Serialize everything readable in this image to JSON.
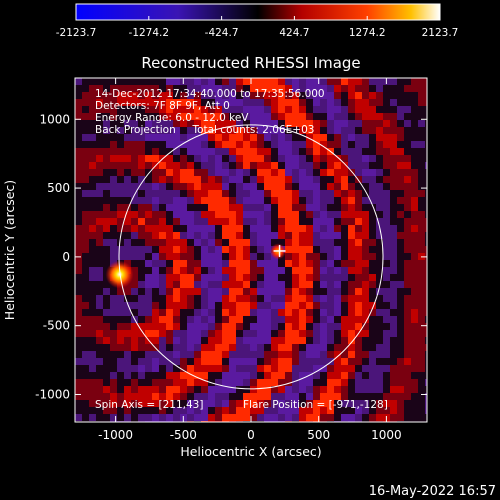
{
  "chart_data": {
    "type": "heatmap",
    "title": "Reconstructed RHESSI Image",
    "xlabel": "Heliocentric X (arcsec)",
    "ylabel": "Heliocentric Y (arcsec)",
    "xlim": [
      -1300,
      1300
    ],
    "ylim": [
      -1200,
      1300
    ],
    "xticks": [
      -1000,
      -500,
      0,
      500,
      1000
    ],
    "yticks": [
      -1000,
      -500,
      0,
      500,
      1000
    ],
    "colorbar": {
      "ticks": [
        "-2123.7",
        "-1274.2",
        "-424.7",
        "424.7",
        "1274.2",
        "2123.7"
      ],
      "range": [
        -2123.7,
        2123.7
      ]
    },
    "info_lines": [
      "14-Dec-2012 17:34:40.000 to 17:35:56.000",
      "Detectors: 7F 8F 9F, Att 0",
      "Energy Range: 6.0 - 12.0 keV",
      "Back Projection     Total counts: 2.06E+03"
    ],
    "spin_axis": "Spin Axis = [211,43]",
    "flare_position": "Flare Position = [-971,-128]",
    "sources": [
      {
        "x": -971,
        "y": -128,
        "intensity": 2123.7
      },
      {
        "x": 200,
        "y": 40,
        "intensity": 1500
      }
    ],
    "spin_axis_marker": {
      "x": 211,
      "y": 43
    },
    "solar_limb_radius": 975
  },
  "footer": {
    "timestamp": "16-May-2022 16:57"
  },
  "colors": {
    "background": "#000000",
    "text": "#ffffff",
    "limb": "#ffffff"
  }
}
